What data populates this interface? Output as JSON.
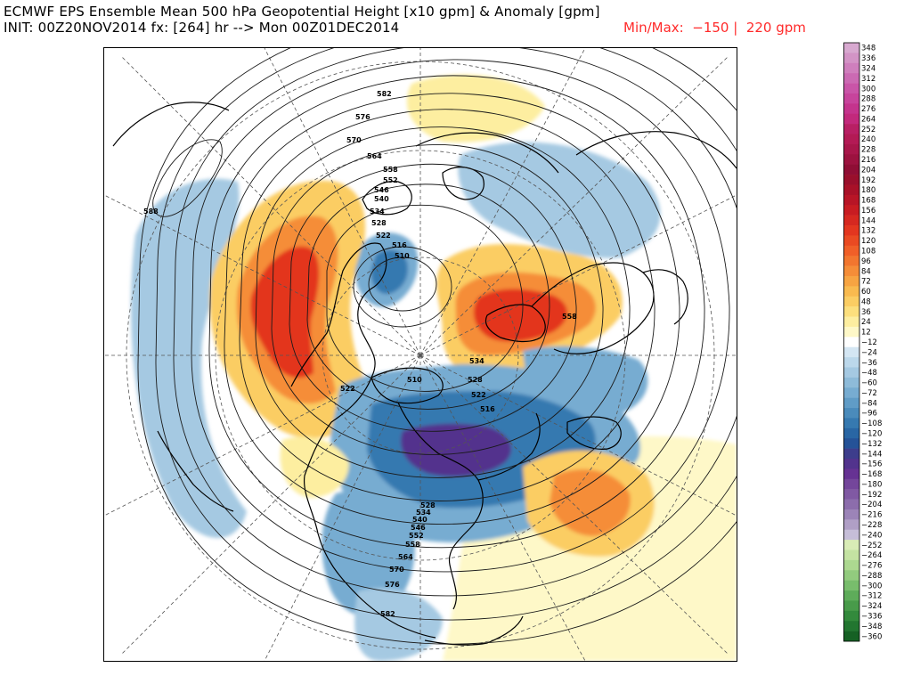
{
  "header": {
    "title": "ECMWF EPS Ensemble Mean 500 hPa Geopotential Height [x10 gpm] & Anomaly [gpm]",
    "subtitle": "INIT: 00Z20NOV2014 fx: [264] hr --> Mon 00Z01DEC2014",
    "minmax": "Min/Max:  −150 |  220 gpm"
  },
  "colorbar": {
    "labels": [
      "348",
      "336",
      "324",
      "312",
      "300",
      "288",
      "276",
      "264",
      "252",
      "240",
      "228",
      "216",
      "204",
      "192",
      "180",
      "168",
      "156",
      "144",
      "132",
      "120",
      "108",
      "96",
      "84",
      "72",
      "60",
      "48",
      "36",
      "24",
      "12",
      "−12",
      "−24",
      "−36",
      "−48",
      "−60",
      "−72",
      "−84",
      "−96",
      "−108",
      "−120",
      "−132",
      "−144",
      "−156",
      "−168",
      "−180",
      "−192",
      "−204",
      "−216",
      "−228",
      "−240",
      "−252",
      "−264",
      "−276",
      "−288",
      "−300",
      "−312",
      "−324",
      "−336",
      "−348",
      "−360"
    ],
    "colors": [
      "#d8a9d0",
      "#d394c6",
      "#cf7fbd",
      "#cb6ab3",
      "#c955a8",
      "#c7449c",
      "#c4348d",
      "#c2297c",
      "#b81f64",
      "#b31a55",
      "#a8164a",
      "#9c123f",
      "#8f0e35",
      "#990f2c",
      "#a81128",
      "#b81526",
      "#c81c22",
      "#d62820",
      "#e3361f",
      "#ea4a22",
      "#f05f28",
      "#f2762f",
      "#f58d38",
      "#f7a442",
      "#f9ba4f",
      "#fbcd63",
      "#fcdf7d",
      "#fdeea0",
      "#fef8c8",
      "#ffffff",
      "#d4e6f3",
      "#bcd8eb",
      "#a5c9e2",
      "#8ebbd9",
      "#77acd1",
      "#609cc6",
      "#4a8bbb",
      "#3679b0",
      "#2966a4",
      "#255297",
      "#3d3d8c",
      "#52338d",
      "#663293",
      "#74469b",
      "#8059a3",
      "#8c6dac",
      "#9c84b8",
      "#b09fc6",
      "#c6bed8",
      "#d9ecb6",
      "#c4e3a2",
      "#acd890",
      "#92cb7e",
      "#78bd6c",
      "#5eac5a",
      "#489b4a",
      "#338a3c",
      "#227630",
      "#166124"
    ]
  },
  "map": {
    "contour_labels": [
      "582",
      "576",
      "570",
      "564",
      "558",
      "552",
      "546",
      "540",
      "534",
      "528",
      "522",
      "516",
      "510",
      "588",
      "522",
      "534",
      "528",
      "522",
      "516",
      "510",
      "582",
      "576",
      "570",
      "564",
      "558",
      "552",
      "546",
      "540",
      "534",
      "528",
      "558"
    ]
  }
}
